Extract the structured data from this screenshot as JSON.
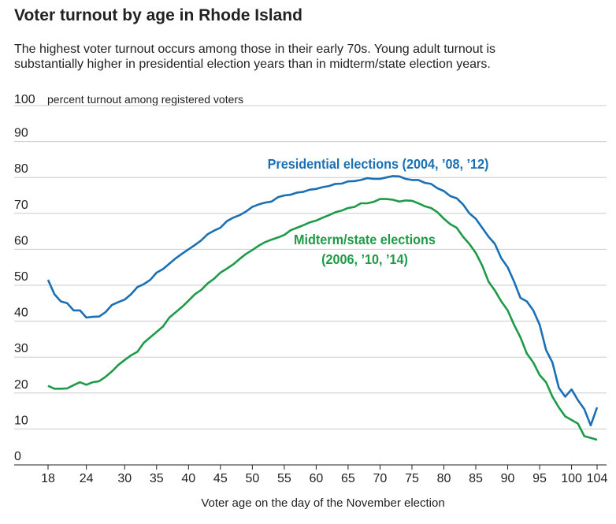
{
  "chart_data": {
    "type": "line",
    "title": "Voter turnout by age in Rhode Island",
    "subtitle_lines": [
      "The highest voter turnout occurs among those in their early 70s. Young adult turnout is",
      "substantially higher in presidential election years than in midterm/state election years."
    ],
    "y_label": "percent turnout among registered voters",
    "x_label": "Voter age on the day of the November election",
    "x": [
      18,
      19,
      20,
      21,
      22,
      23,
      24,
      25,
      26,
      27,
      28,
      29,
      30,
      31,
      32,
      33,
      34,
      35,
      36,
      37,
      38,
      39,
      40,
      41,
      42,
      43,
      44,
      45,
      46,
      47,
      48,
      49,
      50,
      51,
      52,
      53,
      54,
      55,
      56,
      57,
      58,
      59,
      60,
      61,
      62,
      63,
      64,
      65,
      66,
      67,
      68,
      69,
      70,
      71,
      72,
      73,
      74,
      75,
      76,
      77,
      78,
      79,
      80,
      81,
      82,
      83,
      84,
      85,
      86,
      87,
      88,
      89,
      90,
      91,
      92,
      93,
      94,
      95,
      96,
      97,
      98,
      99,
      100,
      101,
      102,
      103,
      104
    ],
    "series": [
      {
        "label_lines": [
          "Presidential elections (2004, ’08, ’12)"
        ],
        "color": "#1a6fb5",
        "values": [
          51.5,
          47.5,
          45.5,
          45,
          43,
          43,
          41,
          41.2,
          41.3,
          42.5,
          44.5,
          45.3,
          46,
          47.5,
          49.5,
          50.3,
          51.5,
          53.5,
          54.5,
          56,
          57.5,
          58.8,
          60,
          61.2,
          62.5,
          64.2,
          65.2,
          66,
          67.8,
          68.8,
          69.5,
          70.5,
          71.8,
          72.5,
          73,
          73.3,
          74.5,
          75,
          75.2,
          75.8,
          76,
          76.6,
          76.8,
          77.3,
          77.6,
          78.2,
          78.3,
          78.9,
          79,
          79.3,
          79.8,
          79.6,
          79.6,
          80,
          80.4,
          80.3,
          79.6,
          79.3,
          79.3,
          78.5,
          78.2,
          77,
          76.2,
          74.8,
          74.2,
          72.5,
          70,
          68.5,
          66,
          63.5,
          61.5,
          57.5,
          55,
          51,
          46.5,
          45.5,
          43,
          39,
          32,
          28.5,
          21.5,
          19,
          21,
          18,
          15.5,
          11,
          16
        ]
      },
      {
        "label_lines": [
          "Midterm/state elections",
          "(2006, ’10, ’14)"
        ],
        "color": "#1e9a48",
        "values": [
          22,
          21.2,
          21.2,
          21.3,
          22.2,
          23,
          22.3,
          23,
          23.3,
          24.5,
          26,
          27.8,
          29.2,
          30.5,
          31.5,
          34,
          35.5,
          37,
          38.5,
          41,
          42.5,
          44,
          45.7,
          47.5,
          48.7,
          50.5,
          51.8,
          53.5,
          54.6,
          55.8,
          57.3,
          58.7,
          59.8,
          61,
          62,
          62.7,
          63.3,
          64,
          65.3,
          66,
          66.7,
          67.5,
          68,
          68.8,
          69.5,
          70.3,
          70.8,
          71.5,
          71.8,
          72.8,
          72.8,
          73.2,
          74,
          74,
          73.8,
          73.3,
          73.6,
          73.5,
          72.8,
          72,
          71.5,
          70.3,
          68.5,
          67,
          66,
          63.5,
          61.5,
          59,
          55.5,
          51,
          48.5,
          45.5,
          43,
          39,
          35.5,
          31,
          28.5,
          25,
          23,
          19,
          16,
          13.5,
          12.5,
          11.5,
          8,
          7.5,
          7
        ]
      }
    ],
    "xlim": [
      18,
      104
    ],
    "xticks": [
      18,
      24,
      30,
      35,
      40,
      45,
      50,
      55,
      60,
      65,
      70,
      75,
      80,
      85,
      90,
      95,
      100,
      104
    ],
    "ylim": [
      0,
      100
    ],
    "yticks": [
      0,
      10,
      20,
      30,
      40,
      50,
      60,
      70,
      80,
      90,
      100
    ],
    "grid": true
  }
}
